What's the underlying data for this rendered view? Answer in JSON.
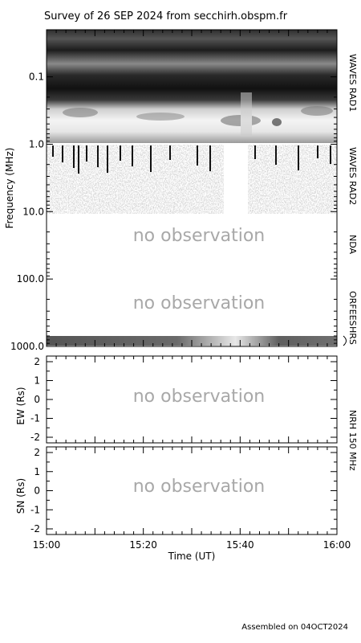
{
  "chart_data": [
    {
      "type": "heatmap",
      "title": "Survey of 26 SEP 2024 from secchirh.obspm.fr",
      "ylabel": "Frequency (MHz)",
      "yscale": "log",
      "ylim": [
        0.02,
        1000
      ],
      "y_ticks": [
        "0.1",
        "1.0",
        "10.0",
        "100.0",
        "1000.0"
      ],
      "y_tick_values": [
        0.1,
        1,
        10,
        100,
        1000
      ],
      "xlim": [
        "15:00",
        "16:00"
      ],
      "bands": [
        {
          "name": "WAVES RAD1",
          "freq_range": [
            0.02,
            1.0
          ],
          "status": "observed"
        },
        {
          "name": "WAVES RAD2",
          "freq_range": [
            1.0,
            13.8
          ],
          "status": "observed",
          "gap": [
            "15:37",
            "15:42"
          ]
        },
        {
          "name": "NDA",
          "freq_range": [
            13.8,
            80
          ],
          "status": "no observation"
        },
        {
          "name": "ORFEES",
          "freq_range": [
            80,
            1000
          ],
          "status": "no observation"
        },
        {
          "name": "HRS",
          "freq_range": [
            1000,
            1300
          ],
          "status": "observed"
        }
      ],
      "annotations": [
        "no observation",
        "no observation"
      ]
    },
    {
      "type": "scatter",
      "ylabel": "EW (Rs)",
      "ylim": [
        -2,
        2
      ],
      "y_ticks": [
        "2",
        "1",
        "0",
        "-1",
        "-2"
      ],
      "y_tick_values": [
        2,
        1,
        0,
        -1,
        -2
      ],
      "xlim": [
        "15:00",
        "16:00"
      ],
      "annotation": "no observation"
    },
    {
      "type": "scatter",
      "ylabel": "SN (Rs)",
      "ylim": [
        -2,
        2
      ],
      "y_ticks": [
        "2",
        "1",
        "0",
        "-1",
        "-2"
      ],
      "y_tick_values": [
        2,
        1,
        0,
        -1,
        -2
      ],
      "xlabel": "Time (UT)",
      "x_ticks": [
        "15:00",
        "15:20",
        "15:40",
        "16:00"
      ],
      "xlim": [
        "15:00",
        "16:00"
      ],
      "annotation": "no observation"
    }
  ],
  "band_labels": [
    "WAVES RAD1",
    "WAVES RAD2",
    "NDA",
    "ORFEES",
    "HRS",
    "NRH 150 MHz"
  ],
  "footer": "Assembled on 04OCT2024",
  "colors": {
    "background": "#ffffff",
    "axis": "#000000",
    "no_observation": "#a8a8a8"
  }
}
